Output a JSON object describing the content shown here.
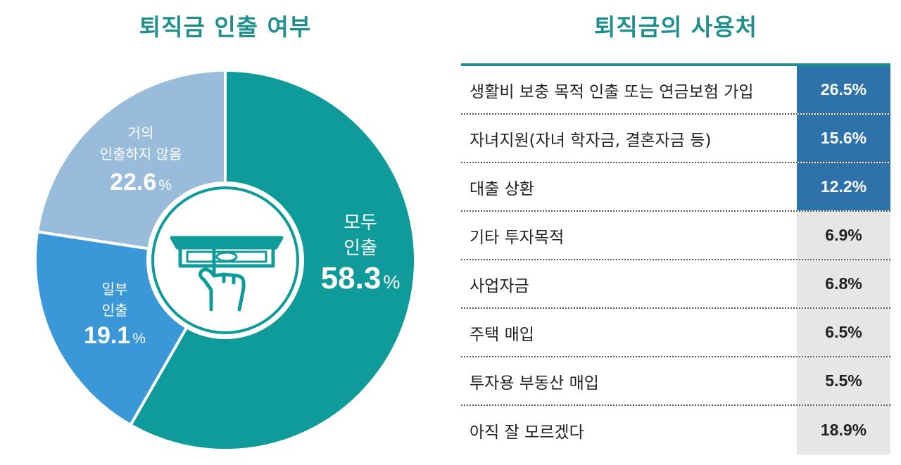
{
  "chart_data": [
    {
      "type": "pie",
      "title": "퇴직금 인출 여부",
      "slices": [
        {
          "label_lines": [
            "모두",
            "인출"
          ],
          "value": 58.3,
          "value_text": "58.3",
          "unit": "%",
          "color": "#0f9b99",
          "text_color": "#ffffff"
        },
        {
          "label_lines": [
            "일부",
            "인출"
          ],
          "value": 19.1,
          "value_text": "19.1",
          "unit": "%",
          "color": "#3a97d8",
          "text_color": "#ffffff"
        },
        {
          "label_lines": [
            "거의",
            "인출하지 않음"
          ],
          "value": 22.6,
          "value_text": "22.6",
          "unit": "%",
          "color": "#98bcd9",
          "text_color": "#ffffff"
        }
      ],
      "center_icon": "cash-withdrawal-hand-icon"
    },
    {
      "type": "table",
      "title": "퇴직금의 사용처",
      "rows": [
        {
          "label": "생활비 보충 목적 인출 또는 연금보험 가입",
          "value": "26.5%",
          "highlight": true
        },
        {
          "label": "자녀지원(자녀 학자금, 결혼자금 등)",
          "value": "15.6%",
          "highlight": true
        },
        {
          "label": "대출 상환",
          "value": "12.2%",
          "highlight": true
        },
        {
          "label": "기타 투자목적",
          "value": "6.9%",
          "highlight": false
        },
        {
          "label": "사업자금",
          "value": "6.8%",
          "highlight": false
        },
        {
          "label": "주택 매입",
          "value": "6.5%",
          "highlight": false
        },
        {
          "label": "투자용 부동산 매입",
          "value": "5.5%",
          "highlight": false
        },
        {
          "label": "아직 잘 모르겠다",
          "value": "18.9%",
          "highlight": false
        }
      ],
      "colors": {
        "header_line": "#1e8f8c",
        "highlight_bg": "#2e72ab",
        "normal_bg": "#e6e6e6"
      }
    }
  ]
}
